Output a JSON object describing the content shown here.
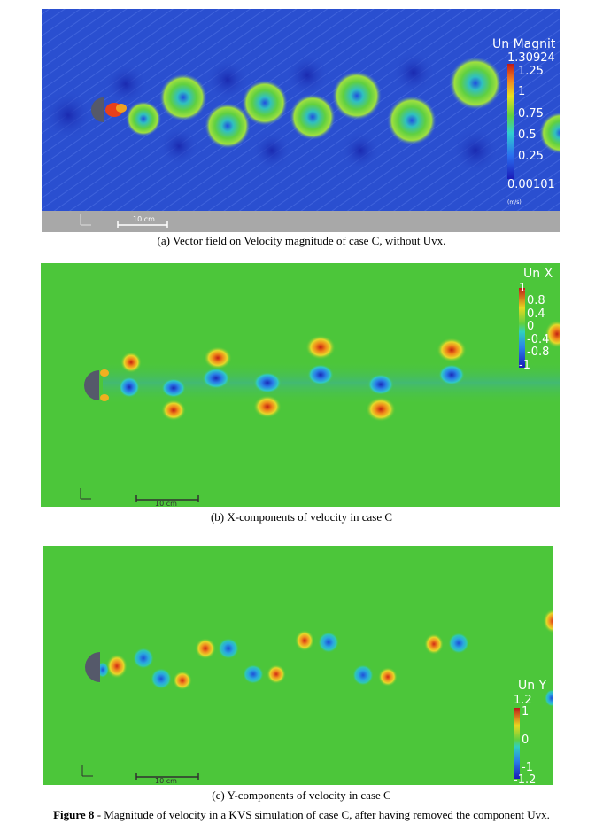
{
  "panel_a": {
    "colorbar_title": "Un Magnit",
    "max_label": "1.30924",
    "ticks": [
      "1.25",
      "1",
      "0.75",
      "0.5",
      "0.25"
    ],
    "min_label": "0.00101",
    "unit_label": "(m/s)",
    "scale_label": "10 cm",
    "caption": "(a)   Vector field on Velocity magnitude of case C, without Uvx."
  },
  "panel_b": {
    "colorbar_title": "Un X",
    "ticks": [
      "1",
      "0.8",
      "0.4",
      "0",
      "-0.4",
      "-0.8",
      "-1"
    ],
    "scale_label": "10 cm",
    "caption": "(b)   X-components of velocity in case C"
  },
  "panel_c": {
    "colorbar_title": "Un Y",
    "ticks": [
      "1.2",
      "1",
      "0",
      "-1",
      "-1.2"
    ],
    "scale_label": "10 cm",
    "caption": "(c)    Y-components of velocity in case C"
  },
  "figure_caption": {
    "label": "Figure 8",
    "text": " - Magnitude of velocity in a KVS simulation of case C, after having removed the component Uvx."
  },
  "colors": {
    "blue_field": "#2a4fd0",
    "green_field": "#4cc63a",
    "cylinder": "#55596a"
  }
}
